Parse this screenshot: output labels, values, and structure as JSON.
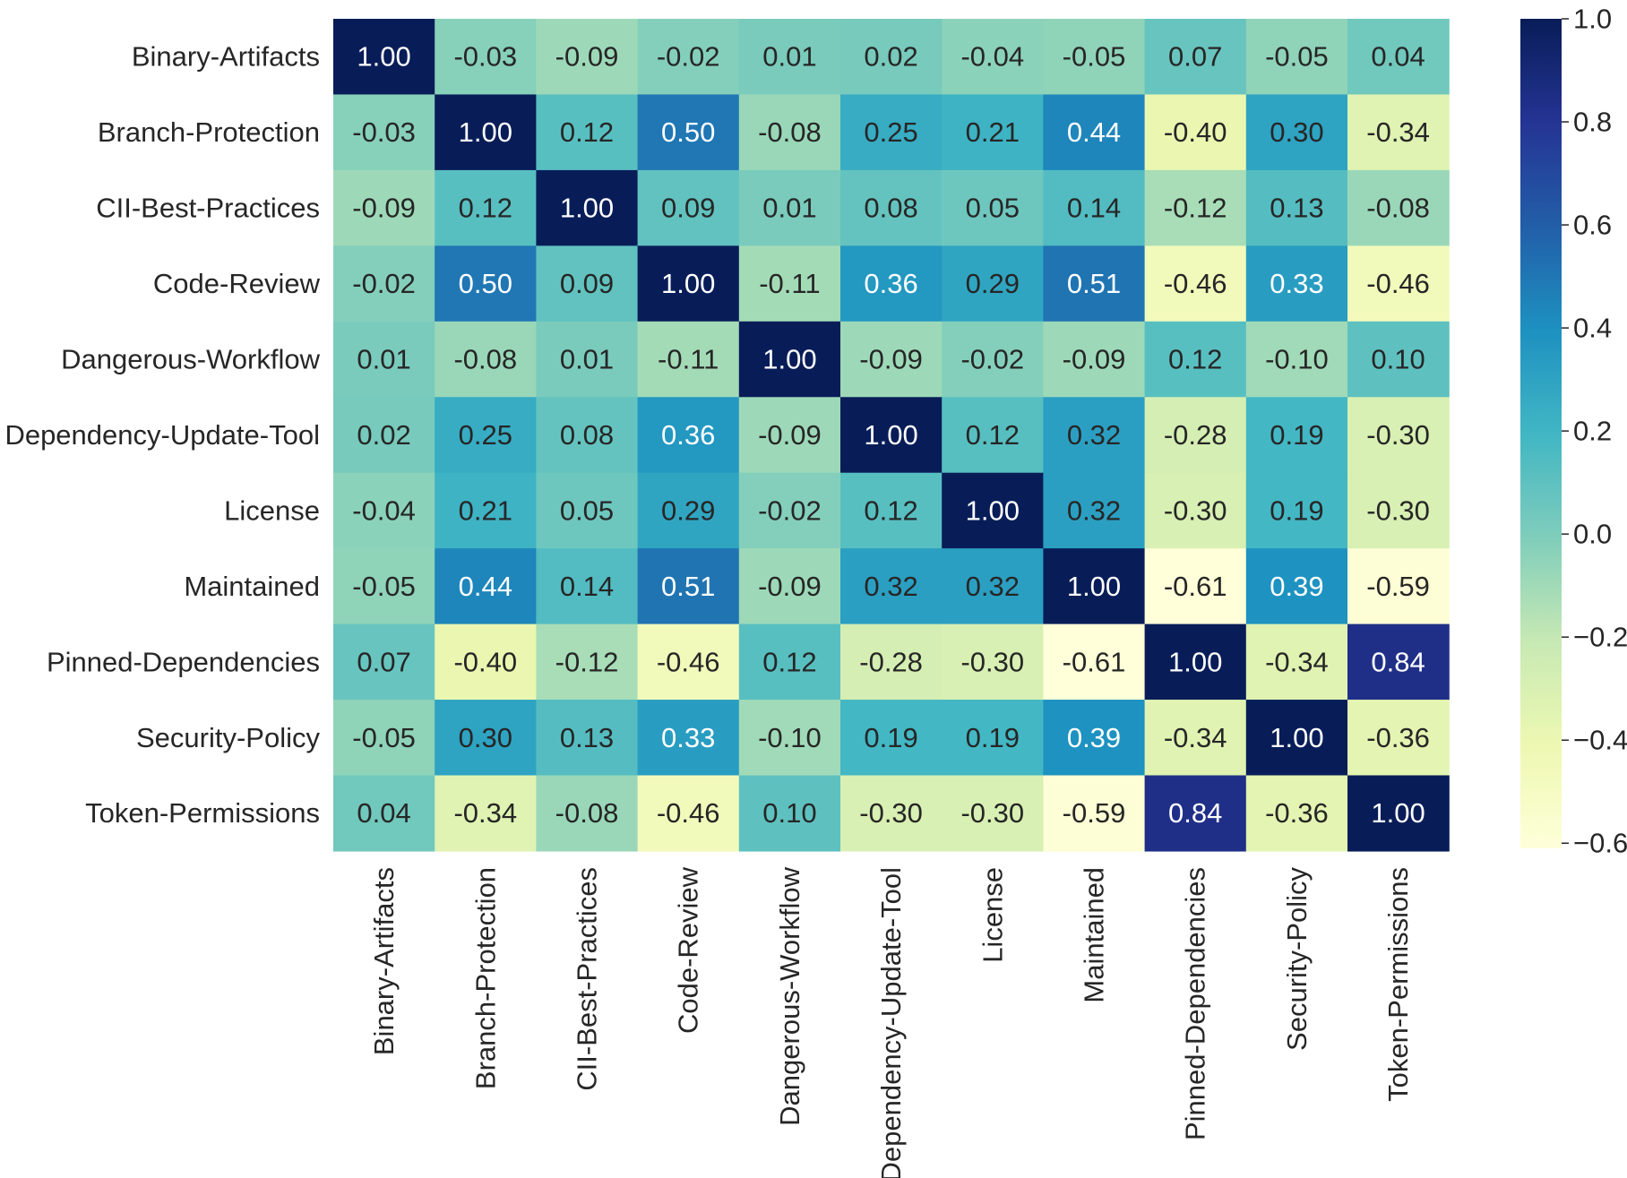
{
  "chart_data": {
    "type": "heatmap",
    "title": "",
    "xlabel": "",
    "ylabel": "",
    "labels": [
      "Binary-Artifacts",
      "Branch-Protection",
      "CII-Best-Practices",
      "Code-Review",
      "Dangerous-Workflow",
      "Dependency-Update-Tool",
      "License",
      "Maintained",
      "Pinned-Dependencies",
      "Security-Policy",
      "Token-Permissions"
    ],
    "values": [
      [
        1.0,
        -0.03,
        -0.09,
        -0.02,
        0.01,
        0.02,
        -0.04,
        -0.05,
        0.07,
        -0.05,
        0.04
      ],
      [
        -0.03,
        1.0,
        0.12,
        0.5,
        -0.08,
        0.25,
        0.21,
        0.44,
        -0.4,
        0.3,
        -0.34
      ],
      [
        -0.09,
        0.12,
        1.0,
        0.09,
        0.01,
        0.08,
        0.05,
        0.14,
        -0.12,
        0.13,
        -0.08
      ],
      [
        -0.02,
        0.5,
        0.09,
        1.0,
        -0.11,
        0.36,
        0.29,
        0.51,
        -0.46,
        0.33,
        -0.46
      ],
      [
        0.01,
        -0.08,
        0.01,
        -0.11,
        1.0,
        -0.09,
        -0.02,
        -0.09,
        0.12,
        -0.1,
        0.1
      ],
      [
        0.02,
        0.25,
        0.08,
        0.36,
        -0.09,
        1.0,
        0.12,
        0.32,
        -0.28,
        0.19,
        -0.3
      ],
      [
        -0.04,
        0.21,
        0.05,
        0.29,
        -0.02,
        0.12,
        1.0,
        0.32,
        -0.3,
        0.19,
        -0.3
      ],
      [
        -0.05,
        0.44,
        0.14,
        0.51,
        -0.09,
        0.32,
        0.32,
        1.0,
        -0.61,
        0.39,
        -0.59
      ],
      [
        0.07,
        -0.4,
        -0.12,
        -0.46,
        0.12,
        -0.28,
        -0.3,
        -0.61,
        1.0,
        -0.34,
        0.84
      ],
      [
        -0.05,
        0.3,
        0.13,
        0.33,
        -0.1,
        0.19,
        0.19,
        0.39,
        -0.34,
        1.0,
        -0.36
      ],
      [
        0.04,
        -0.34,
        -0.08,
        -0.46,
        0.1,
        -0.3,
        -0.3,
        -0.59,
        0.84,
        -0.36,
        1.0
      ]
    ],
    "value_format": "2 decimals",
    "colormap": "YlGnBu",
    "colormap_stops": [
      "#ffffd9",
      "#edf8b1",
      "#c7e9b4",
      "#7fcdbb",
      "#41b6c4",
      "#1d91c0",
      "#225ea8",
      "#253494",
      "#081d58"
    ],
    "colorbar": {
      "vmin": -0.61,
      "vmax": 1.0,
      "ticks": [
        1.0,
        0.8,
        0.6,
        0.4,
        0.2,
        0.0,
        -0.2,
        -0.4,
        -0.6
      ],
      "tick_labels": [
        "1.0",
        "0.8",
        "0.6",
        "0.4",
        "0.2",
        "0.0",
        "−0.2",
        "−0.4",
        "−0.6"
      ],
      "placement": "right"
    },
    "grid": false,
    "legend": "none"
  }
}
